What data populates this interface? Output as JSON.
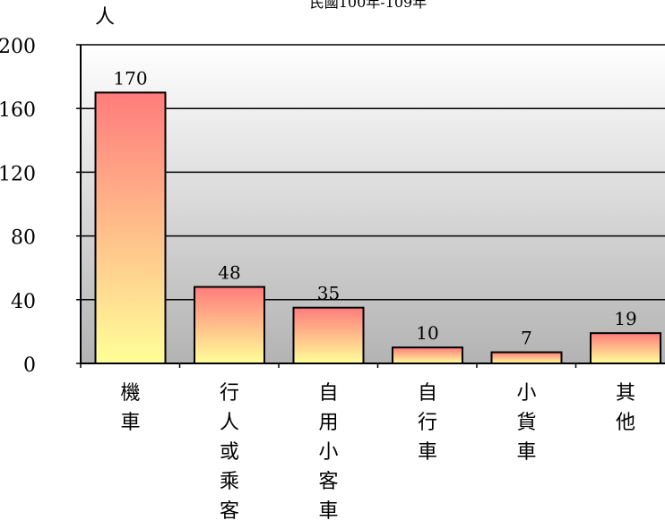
{
  "chart_data": {
    "type": "bar",
    "title": "民國100年-109年",
    "ylabel": "人",
    "xlabel": "",
    "categories": [
      "機車",
      "行人或乘客",
      "自用小客車",
      "自行車",
      "小貨車",
      "其他"
    ],
    "values": [
      170,
      48,
      35,
      10,
      7,
      19
    ],
    "ylim": [
      0,
      200
    ],
    "yticks": [
      0,
      40,
      80,
      120,
      160,
      200
    ],
    "grid": true,
    "legend": "none",
    "colors": {
      "bar_top": "#ff7c7c",
      "bar_bottom": "#ffff99",
      "plot_bg_top": "#ffffff",
      "plot_bg_bottom": "#b3b3b3",
      "axis": "#000000"
    }
  }
}
